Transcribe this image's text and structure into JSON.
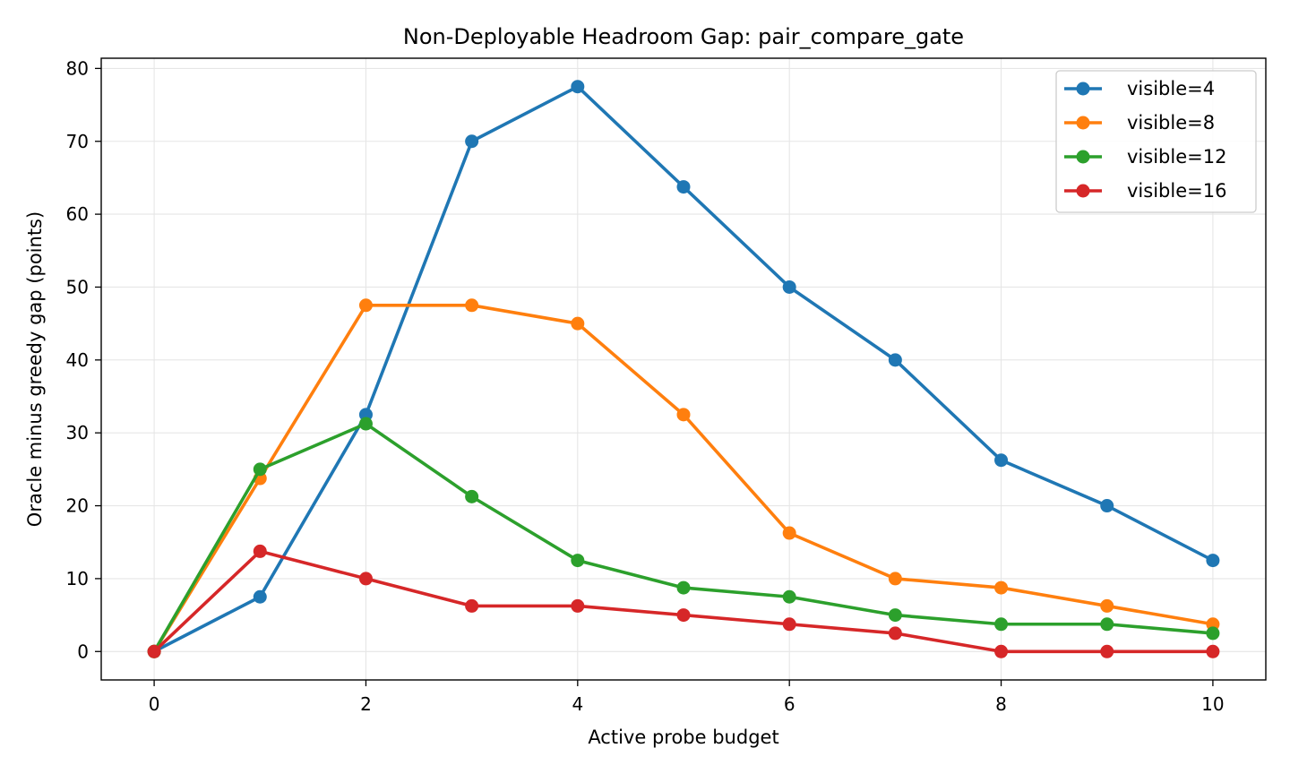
{
  "chart_data": {
    "type": "line",
    "title": "Non-Deployable Headroom Gap: pair_compare_gate",
    "xlabel": "Active probe budget",
    "ylabel": "Oracle minus greedy gap (points)",
    "x": [
      0,
      1,
      2,
      3,
      4,
      5,
      6,
      7,
      8,
      9,
      10
    ],
    "xlim": [
      -0.5,
      10.5
    ],
    "ylim": [
      -3.9,
      81.4
    ],
    "xticks": [
      "0",
      "2",
      "4",
      "6",
      "8",
      "10"
    ],
    "yticks": [
      "0",
      "10",
      "20",
      "30",
      "40",
      "50",
      "60",
      "70",
      "80"
    ],
    "grid": true,
    "legend_position": "top-right",
    "series": [
      {
        "name": "visible=4",
        "color": "#1f77b4",
        "values": [
          0,
          7.5,
          32.5,
          70,
          77.5,
          63.75,
          50,
          40,
          26.25,
          20,
          12.5
        ]
      },
      {
        "name": "visible=8",
        "color": "#ff7f0e",
        "values": [
          0,
          23.75,
          47.5,
          47.5,
          45,
          32.5,
          16.25,
          10,
          8.75,
          6.25,
          3.75
        ]
      },
      {
        "name": "visible=12",
        "color": "#2ca02c",
        "values": [
          0,
          25,
          31.25,
          21.25,
          12.5,
          8.75,
          7.5,
          5,
          3.75,
          3.75,
          2.5
        ]
      },
      {
        "name": "visible=16",
        "color": "#d62728",
        "values": [
          0,
          13.75,
          10,
          6.25,
          6.25,
          5,
          3.75,
          2.5,
          0,
          0,
          0
        ]
      }
    ]
  }
}
